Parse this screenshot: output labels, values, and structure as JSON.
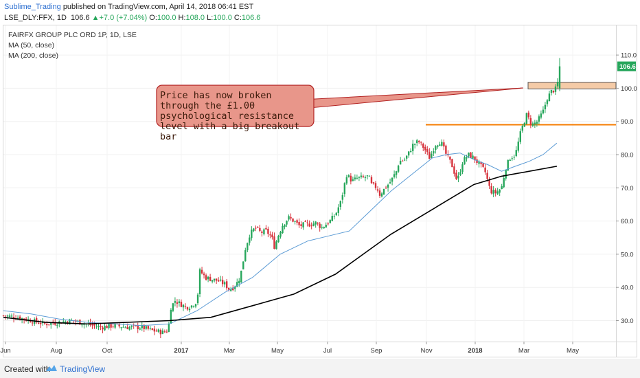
{
  "header": {
    "user": "Sublime_Trading",
    "published": "published on TradingView.com, April 14, 2018 06:41 EST",
    "symbol": "LSE_DLY:FFX, 1D",
    "last": "106.6",
    "change": "+7.0 (+7.04%)",
    "open_label": "O:",
    "open": "100.0",
    "high_label": "H:",
    "high": "108.0",
    "low_label": "L:",
    "low": "100.0",
    "close_label": "C:",
    "close": "106.6",
    "up_arrow": "▲"
  },
  "legend": {
    "title": "FAIRFX GROUP PLC ORD 1P, 1D, LSE",
    "ma50": "MA (50, close)",
    "ma200": "MA (200, close)"
  },
  "annotation": {
    "text": "Price has now broken through the £1.00 psychological resistance level with a big breakout bar"
  },
  "last_price_tag": "106.6",
  "footer": {
    "created": "Created with",
    "brand": "TradingView"
  },
  "colors": {
    "up": "#26a65b",
    "down": "#d6303a",
    "ma50": "#5b9bd5",
    "ma200": "#000000",
    "level90": "#f57c00",
    "zone100": "#f5cba7",
    "callout": "#e8968a"
  },
  "chart_data": {
    "type": "candlestick",
    "ylim": [
      22,
      117
    ],
    "y_ticks": [
      "30.0",
      "40.0",
      "50.0",
      "60.0",
      "70.0",
      "80.0",
      "90.0",
      "100.0",
      "110.0"
    ],
    "x_ticks": [
      "Jun",
      "Aug",
      "Oct",
      "2017",
      "Mar",
      "May",
      "Jul",
      "Sep",
      "Nov",
      "2018",
      "Mar",
      "May"
    ],
    "close_path": [
      [
        0,
        31.5
      ],
      [
        10,
        31
      ],
      [
        20,
        30
      ],
      [
        30,
        29
      ],
      [
        40,
        29.5
      ],
      [
        50,
        30
      ],
      [
        60,
        29
      ],
      [
        70,
        28
      ],
      [
        80,
        28.5
      ],
      [
        90,
        28
      ],
      [
        100,
        28
      ],
      [
        108,
        27
      ],
      [
        115,
        26.5
      ],
      [
        119,
        27
      ],
      [
        121,
        34
      ],
      [
        124,
        36
      ],
      [
        128,
        35
      ],
      [
        132,
        34
      ],
      [
        136,
        34.5
      ],
      [
        140,
        36
      ],
      [
        142,
        45
      ],
      [
        146,
        43
      ],
      [
        150,
        42.5
      ],
      [
        155,
        42
      ],
      [
        160,
        41
      ],
      [
        163,
        39.5
      ],
      [
        166,
        40
      ],
      [
        170,
        42
      ],
      [
        172,
        45
      ],
      [
        175,
        52
      ],
      [
        178,
        56
      ],
      [
        182,
        58
      ],
      [
        186,
        56.5
      ],
      [
        190,
        57
      ],
      [
        194,
        55
      ],
      [
        196,
        52
      ],
      [
        198,
        55
      ],
      [
        202,
        59
      ],
      [
        206,
        61
      ],
      [
        210,
        60
      ],
      [
        214,
        58.5
      ],
      [
        218,
        59
      ],
      [
        222,
        59
      ],
      [
        226,
        59.5
      ],
      [
        230,
        58
      ],
      [
        236,
        60
      ],
      [
        240,
        62
      ],
      [
        244,
        66
      ],
      [
        248,
        74
      ],
      [
        252,
        72
      ],
      [
        256,
        73
      ],
      [
        260,
        73
      ],
      [
        264,
        73.5
      ],
      [
        266,
        71
      ],
      [
        270,
        70
      ],
      [
        272,
        68
      ],
      [
        276,
        70
      ],
      [
        280,
        72
      ],
      [
        284,
        75
      ],
      [
        286,
        78
      ],
      [
        290,
        78.5
      ],
      [
        293,
        80.5
      ],
      [
        296,
        83
      ],
      [
        300,
        84
      ],
      [
        304,
        82
      ],
      [
        308,
        79
      ],
      [
        312,
        83
      ],
      [
        316,
        84
      ],
      [
        320,
        80
      ],
      [
        324,
        77
      ],
      [
        328,
        72
      ],
      [
        332,
        78
      ],
      [
        336,
        80
      ],
      [
        340,
        79
      ],
      [
        344,
        77
      ],
      [
        348,
        75
      ],
      [
        350,
        72
      ],
      [
        352,
        69
      ],
      [
        356,
        68.5
      ],
      [
        360,
        70
      ],
      [
        363,
        76
      ],
      [
        366,
        79
      ],
      [
        370,
        80
      ],
      [
        374,
        87
      ],
      [
        378,
        92
      ],
      [
        382,
        89
      ],
      [
        386,
        90
      ],
      [
        390,
        93
      ],
      [
        393,
        97
      ],
      [
        396,
        99
      ],
      [
        400,
        100
      ],
      [
        402,
        106.6
      ]
    ],
    "ma50": [
      [
        0,
        33
      ],
      [
        20,
        32
      ],
      [
        40,
        30.5
      ],
      [
        60,
        29.5
      ],
      [
        80,
        29
      ],
      [
        100,
        28.5
      ],
      [
        120,
        29
      ],
      [
        140,
        33
      ],
      [
        160,
        38.5
      ],
      [
        180,
        43
      ],
      [
        200,
        50
      ],
      [
        220,
        54
      ],
      [
        235,
        55.5
      ],
      [
        250,
        57
      ],
      [
        265,
        63
      ],
      [
        280,
        69
      ],
      [
        295,
        74
      ],
      [
        310,
        79
      ],
      [
        320,
        80
      ],
      [
        330,
        80.5
      ],
      [
        340,
        78.5
      ],
      [
        350,
        77
      ],
      [
        360,
        75
      ],
      [
        370,
        76.5
      ],
      [
        380,
        78
      ],
      [
        390,
        80
      ],
      [
        400,
        83.5
      ]
    ],
    "ma200": [
      [
        0,
        31
      ],
      [
        30,
        29.5
      ],
      [
        60,
        29
      ],
      [
        90,
        29.5
      ],
      [
        120,
        30
      ],
      [
        150,
        31
      ],
      [
        180,
        34.5
      ],
      [
        210,
        38
      ],
      [
        240,
        44
      ],
      [
        260,
        50
      ],
      [
        280,
        56
      ],
      [
        300,
        61
      ],
      [
        320,
        66
      ],
      [
        340,
        71
      ],
      [
        360,
        73.5
      ],
      [
        380,
        75
      ],
      [
        400,
        76.5
      ]
    ],
    "resistance_90": 89,
    "resistance_zone": [
      99.8,
      101.8
    ],
    "last_price": 106.6
  }
}
